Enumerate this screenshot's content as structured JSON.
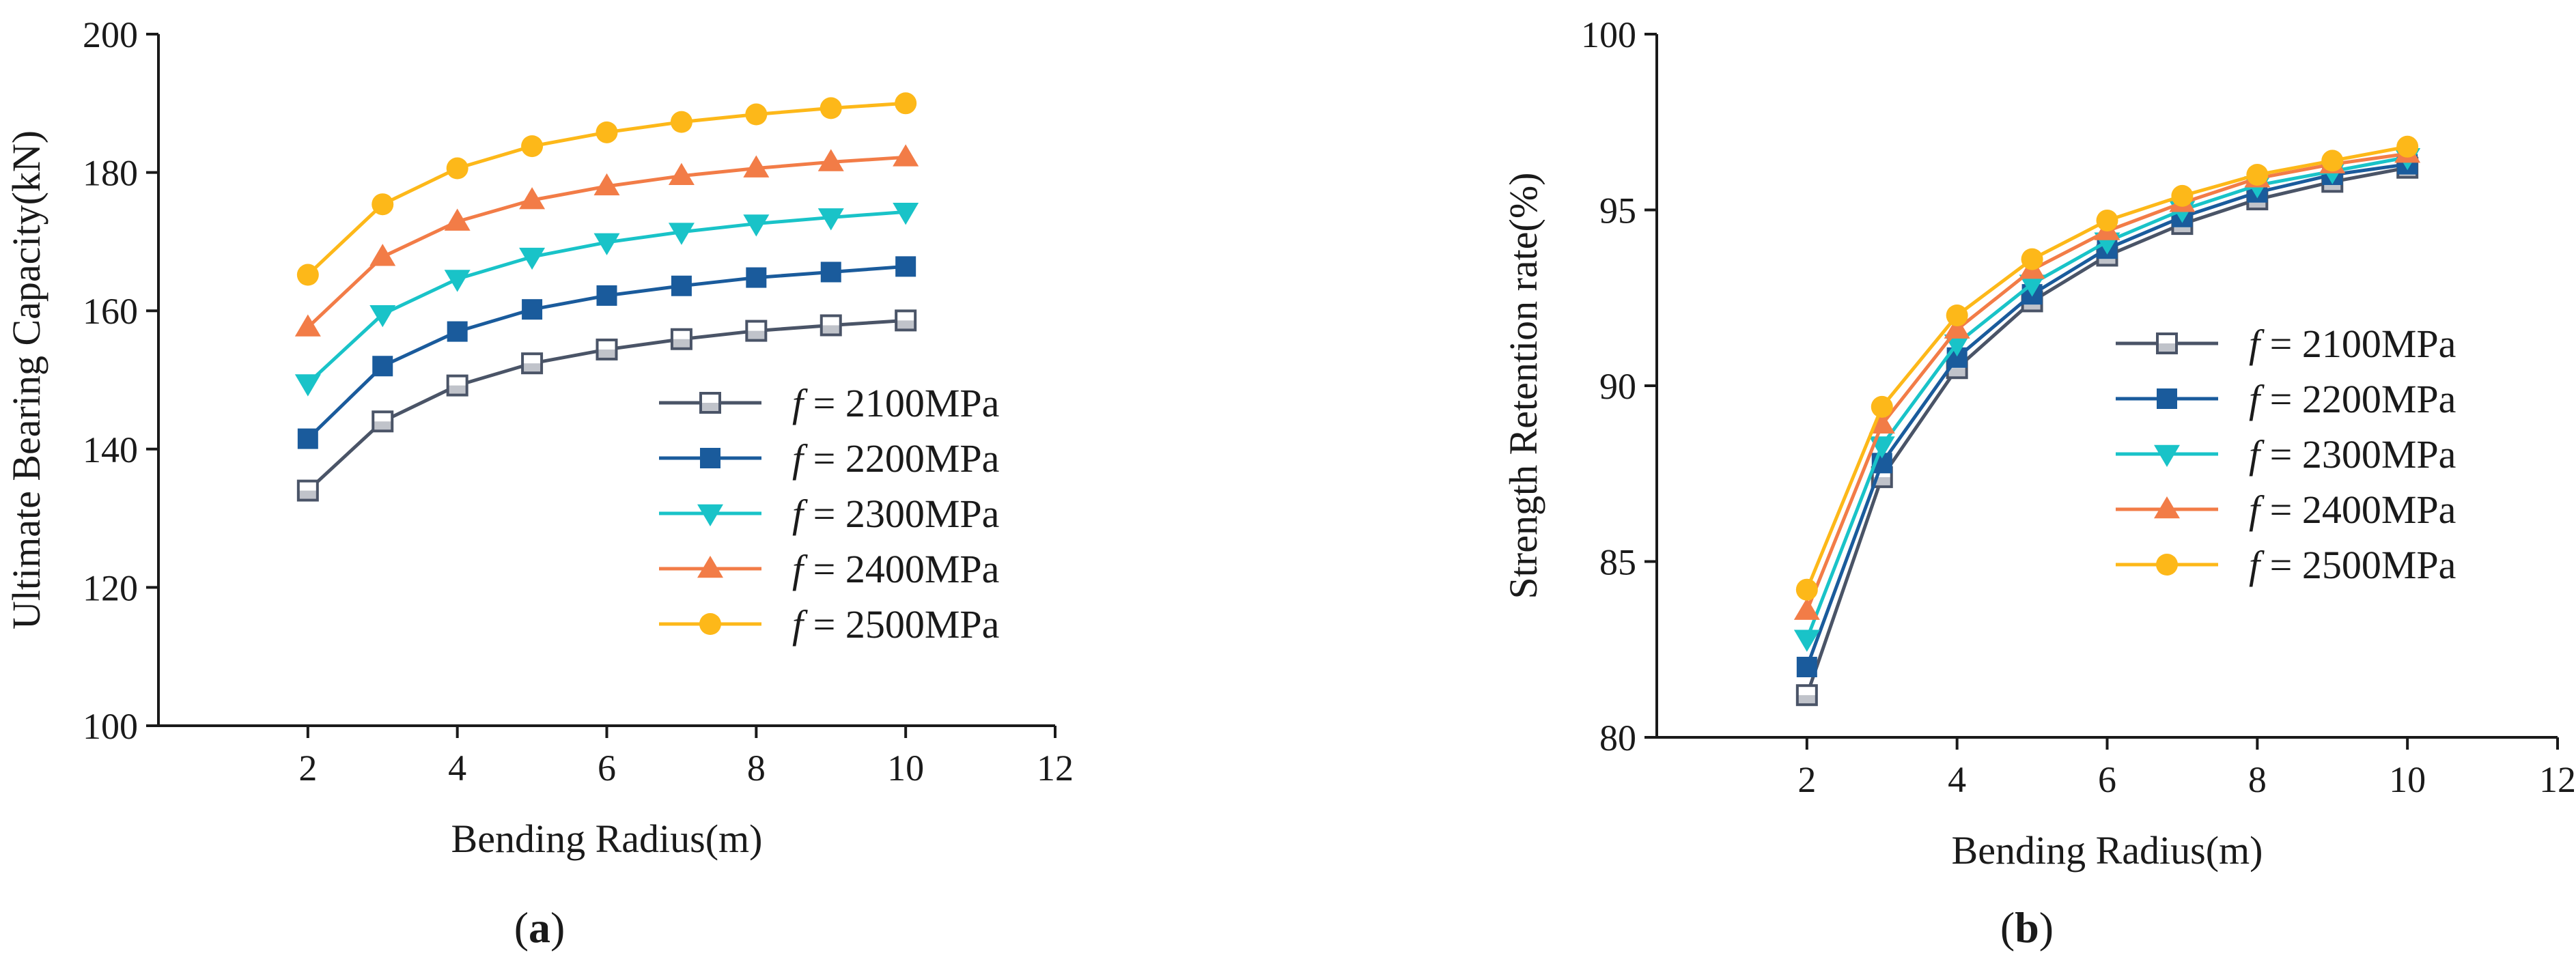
{
  "chart_data": [
    {
      "type": "line",
      "panel_label": "a",
      "xlabel": "Bending Radius(m)",
      "ylabel": "Ultimate Bearing Capacity(kN)",
      "xlim": [
        0,
        12
      ],
      "ylim": [
        100,
        200
      ],
      "xticks": [
        2,
        4,
        6,
        8,
        10,
        12
      ],
      "yticks": [
        100,
        120,
        140,
        160,
        180,
        200
      ],
      "legend_position": "right",
      "x": [
        2,
        3,
        4,
        5,
        6,
        7,
        8,
        9,
        10
      ],
      "series": [
        {
          "name": "f = 2100MPa",
          "italic": "f",
          "rest": " = 2100MPa",
          "color": "#4a5467",
          "marker": "square-open",
          "values": [
            134.0,
            144.0,
            149.2,
            152.4,
            154.4,
            155.9,
            157.1,
            157.9,
            158.6
          ]
        },
        {
          "name": "f = 2200MPa",
          "italic": "f",
          "rest": " = 2200MPa",
          "color": "#1a5b9c",
          "marker": "square",
          "values": [
            141.5,
            152.0,
            157.0,
            160.2,
            162.2,
            163.6,
            164.8,
            165.6,
            166.4
          ]
        },
        {
          "name": "f = 2300MPa",
          "italic": "f",
          "rest": " = 2300MPa",
          "color": "#19c3c8",
          "marker": "triangle-down",
          "values": [
            149.5,
            159.5,
            164.6,
            167.8,
            169.9,
            171.4,
            172.6,
            173.5,
            174.3
          ]
        },
        {
          "name": "f = 2400MPa",
          "italic": "f",
          "rest": " = 2400MPa",
          "color": "#f27c47",
          "marker": "triangle-up",
          "values": [
            157.6,
            167.8,
            172.9,
            176.0,
            178.0,
            179.5,
            180.6,
            181.5,
            182.2
          ]
        },
        {
          "name": "f = 2500MPa",
          "italic": "f",
          "rest": " = 2500MPa",
          "color": "#fdb819",
          "marker": "circle",
          "values": [
            165.2,
            175.4,
            180.6,
            183.8,
            185.8,
            187.3,
            188.4,
            189.3,
            190.0
          ]
        }
      ]
    },
    {
      "type": "line",
      "panel_label": "b",
      "xlabel": "Bending Radius(m)",
      "ylabel": "Strength Retention rate(%)",
      "xlim": [
        0,
        12
      ],
      "ylim": [
        80,
        100
      ],
      "xticks": [
        2,
        4,
        6,
        8,
        10,
        12
      ],
      "yticks": [
        80,
        85,
        90,
        95,
        100
      ],
      "legend_position": "right",
      "x": [
        2,
        3,
        4,
        5,
        6,
        7,
        8,
        9,
        10
      ],
      "series": [
        {
          "name": "f = 2100MPa",
          "italic": "f",
          "rest": " = 2100MPa",
          "color": "#4a5467",
          "marker": "square-open",
          "values": [
            81.2,
            87.4,
            90.5,
            92.4,
            93.7,
            94.6,
            95.3,
            95.8,
            96.2
          ]
        },
        {
          "name": "f = 2200MPa",
          "italic": "f",
          "rest": " = 2200MPa",
          "color": "#1a5b9c",
          "marker": "square",
          "values": [
            82.0,
            87.8,
            90.8,
            92.6,
            93.9,
            94.8,
            95.5,
            96.0,
            96.3
          ]
        },
        {
          "name": "f = 2300MPa",
          "italic": "f",
          "rest": " = 2300MPa",
          "color": "#19c3c8",
          "marker": "triangle-down",
          "values": [
            82.8,
            88.3,
            91.2,
            92.9,
            94.1,
            95.0,
            95.7,
            96.1,
            96.5
          ]
        },
        {
          "name": "f = 2400MPa",
          "italic": "f",
          "rest": " = 2400MPa",
          "color": "#f27c47",
          "marker": "triangle-up",
          "values": [
            83.6,
            88.9,
            91.6,
            93.3,
            94.4,
            95.2,
            95.9,
            96.3,
            96.6
          ]
        },
        {
          "name": "f = 2500MPa",
          "italic": "f",
          "rest": " = 2500MPa",
          "color": "#fdb819",
          "marker": "circle",
          "values": [
            84.2,
            89.4,
            92.0,
            93.6,
            94.7,
            95.4,
            96.0,
            96.4,
            96.8
          ]
        }
      ]
    }
  ]
}
